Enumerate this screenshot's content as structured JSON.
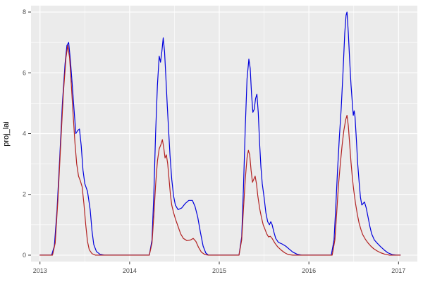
{
  "chart_data": {
    "type": "line",
    "title": "",
    "xlabel": "",
    "ylabel": "proj_lai",
    "xlim": [
      2012.9,
      2017.21
    ],
    "ylim": [
      -0.21,
      8.21
    ],
    "x_major_ticks": [
      2013,
      2014,
      2015,
      2016,
      2017
    ],
    "x_minor_ticks": [
      2013.5,
      2014.5,
      2015.5,
      2016.5
    ],
    "y_major_ticks": [
      0,
      2,
      4,
      6,
      8
    ],
    "y_minor_ticks": [
      1,
      3,
      5,
      7
    ],
    "grid": true,
    "legend": "none",
    "panel_bg": "#EBEBEB",
    "grid_color": "#FFFFFF",
    "axis_text_color": "#4D4D4D",
    "tick_mark_color": "#333333",
    "series": [
      {
        "name": "blue",
        "color": "#0000DD",
        "points": [
          [
            2013.0,
            0
          ],
          [
            2013.13,
            0
          ],
          [
            2013.16,
            0.3
          ],
          [
            2013.19,
            1.5
          ],
          [
            2013.22,
            3.2
          ],
          [
            2013.25,
            5.0
          ],
          [
            2013.28,
            6.3
          ],
          [
            2013.3,
            6.9
          ],
          [
            2013.32,
            7.0
          ],
          [
            2013.34,
            6.4
          ],
          [
            2013.36,
            5.6
          ],
          [
            2013.38,
            4.8
          ],
          [
            2013.4,
            4.0
          ],
          [
            2013.42,
            4.1
          ],
          [
            2013.44,
            4.15
          ],
          [
            2013.46,
            3.6
          ],
          [
            2013.48,
            2.8
          ],
          [
            2013.5,
            2.35
          ],
          [
            2013.53,
            2.1
          ],
          [
            2013.56,
            1.5
          ],
          [
            2013.58,
            0.8
          ],
          [
            2013.6,
            0.35
          ],
          [
            2013.63,
            0.12
          ],
          [
            2013.67,
            0.03
          ],
          [
            2013.72,
            0
          ],
          [
            2014.22,
            0
          ],
          [
            2014.25,
            0.5
          ],
          [
            2014.27,
            2.0
          ],
          [
            2014.29,
            4.0
          ],
          [
            2014.31,
            5.6
          ],
          [
            2014.33,
            6.55
          ],
          [
            2014.345,
            6.35
          ],
          [
            2014.36,
            6.7
          ],
          [
            2014.375,
            7.15
          ],
          [
            2014.39,
            6.7
          ],
          [
            2014.405,
            5.8
          ],
          [
            2014.42,
            4.9
          ],
          [
            2014.435,
            4.1
          ],
          [
            2014.45,
            3.3
          ],
          [
            2014.47,
            2.5
          ],
          [
            2014.49,
            1.95
          ],
          [
            2014.51,
            1.65
          ],
          [
            2014.54,
            1.5
          ],
          [
            2014.58,
            1.55
          ],
          [
            2014.62,
            1.7
          ],
          [
            2014.66,
            1.8
          ],
          [
            2014.7,
            1.8
          ],
          [
            2014.73,
            1.6
          ],
          [
            2014.76,
            1.25
          ],
          [
            2014.79,
            0.75
          ],
          [
            2014.82,
            0.3
          ],
          [
            2014.85,
            0.07
          ],
          [
            2014.88,
            0
          ],
          [
            2015.22,
            0
          ],
          [
            2015.25,
            0.6
          ],
          [
            2015.27,
            2.2
          ],
          [
            2015.29,
            4.2
          ],
          [
            2015.31,
            5.8
          ],
          [
            2015.33,
            6.45
          ],
          [
            2015.345,
            6.15
          ],
          [
            2015.36,
            5.3
          ],
          [
            2015.375,
            4.7
          ],
          [
            2015.39,
            4.8
          ],
          [
            2015.405,
            5.15
          ],
          [
            2015.42,
            5.3
          ],
          [
            2015.435,
            4.7
          ],
          [
            2015.45,
            3.7
          ],
          [
            2015.465,
            2.9
          ],
          [
            2015.48,
            2.35
          ],
          [
            2015.5,
            1.9
          ],
          [
            2015.52,
            1.4
          ],
          [
            2015.54,
            1.1
          ],
          [
            2015.56,
            1.0
          ],
          [
            2015.575,
            1.1
          ],
          [
            2015.59,
            1.0
          ],
          [
            2015.61,
            0.75
          ],
          [
            2015.63,
            0.55
          ],
          [
            2015.66,
            0.42
          ],
          [
            2015.7,
            0.37
          ],
          [
            2015.74,
            0.3
          ],
          [
            2015.78,
            0.2
          ],
          [
            2015.82,
            0.1
          ],
          [
            2015.87,
            0.03
          ],
          [
            2015.92,
            0
          ],
          [
            2016.25,
            0
          ],
          [
            2016.28,
            0.5
          ],
          [
            2016.3,
            1.6
          ],
          [
            2016.32,
            2.8
          ],
          [
            2016.34,
            3.9
          ],
          [
            2016.36,
            4.8
          ],
          [
            2016.38,
            6.0
          ],
          [
            2016.4,
            7.3
          ],
          [
            2016.415,
            7.9
          ],
          [
            2016.425,
            8.0
          ],
          [
            2016.44,
            7.3
          ],
          [
            2016.455,
            6.4
          ],
          [
            2016.47,
            5.6
          ],
          [
            2016.485,
            5.0
          ],
          [
            2016.495,
            4.6
          ],
          [
            2016.505,
            4.75
          ],
          [
            2016.515,
            4.55
          ],
          [
            2016.53,
            3.8
          ],
          [
            2016.545,
            3.0
          ],
          [
            2016.56,
            2.4
          ],
          [
            2016.575,
            1.9
          ],
          [
            2016.59,
            1.65
          ],
          [
            2016.605,
            1.7
          ],
          [
            2016.62,
            1.75
          ],
          [
            2016.64,
            1.55
          ],
          [
            2016.66,
            1.25
          ],
          [
            2016.68,
            0.95
          ],
          [
            2016.7,
            0.7
          ],
          [
            2016.73,
            0.5
          ],
          [
            2016.76,
            0.4
          ],
          [
            2016.8,
            0.28
          ],
          [
            2016.84,
            0.17
          ],
          [
            2016.88,
            0.08
          ],
          [
            2016.93,
            0.02
          ],
          [
            2016.98,
            0
          ],
          [
            2017.02,
            0
          ]
        ]
      },
      {
        "name": "red",
        "color": "#B22222",
        "points": [
          [
            2013.0,
            0
          ],
          [
            2013.14,
            0
          ],
          [
            2013.17,
            0.4
          ],
          [
            2013.2,
            1.8
          ],
          [
            2013.23,
            3.6
          ],
          [
            2013.26,
            5.3
          ],
          [
            2013.29,
            6.5
          ],
          [
            2013.31,
            6.9
          ],
          [
            2013.33,
            6.5
          ],
          [
            2013.35,
            5.6
          ],
          [
            2013.37,
            4.6
          ],
          [
            2013.39,
            3.7
          ],
          [
            2013.41,
            3.0
          ],
          [
            2013.43,
            2.6
          ],
          [
            2013.45,
            2.45
          ],
          [
            2013.47,
            2.25
          ],
          [
            2013.49,
            1.7
          ],
          [
            2013.51,
            1.0
          ],
          [
            2013.53,
            0.45
          ],
          [
            2013.55,
            0.18
          ],
          [
            2013.58,
            0.05
          ],
          [
            2013.62,
            0
          ],
          [
            2014.22,
            0
          ],
          [
            2014.25,
            0.4
          ],
          [
            2014.27,
            1.3
          ],
          [
            2014.29,
            2.3
          ],
          [
            2014.31,
            3.1
          ],
          [
            2014.33,
            3.5
          ],
          [
            2014.35,
            3.65
          ],
          [
            2014.365,
            3.8
          ],
          [
            2014.38,
            3.55
          ],
          [
            2014.395,
            3.2
          ],
          [
            2014.41,
            3.3
          ],
          [
            2014.425,
            3.0
          ],
          [
            2014.44,
            2.5
          ],
          [
            2014.455,
            2.0
          ],
          [
            2014.47,
            1.65
          ],
          [
            2014.49,
            1.4
          ],
          [
            2014.51,
            1.2
          ],
          [
            2014.54,
            0.95
          ],
          [
            2014.57,
            0.7
          ],
          [
            2014.6,
            0.55
          ],
          [
            2014.64,
            0.48
          ],
          [
            2014.68,
            0.5
          ],
          [
            2014.71,
            0.55
          ],
          [
            2014.74,
            0.45
          ],
          [
            2014.77,
            0.25
          ],
          [
            2014.8,
            0.1
          ],
          [
            2014.84,
            0.02
          ],
          [
            2014.88,
            0
          ],
          [
            2015.22,
            0
          ],
          [
            2015.25,
            0.5
          ],
          [
            2015.27,
            1.5
          ],
          [
            2015.29,
            2.5
          ],
          [
            2015.31,
            3.2
          ],
          [
            2015.325,
            3.45
          ],
          [
            2015.34,
            3.3
          ],
          [
            2015.355,
            2.8
          ],
          [
            2015.37,
            2.4
          ],
          [
            2015.385,
            2.5
          ],
          [
            2015.4,
            2.6
          ],
          [
            2015.415,
            2.35
          ],
          [
            2015.43,
            1.95
          ],
          [
            2015.45,
            1.55
          ],
          [
            2015.47,
            1.25
          ],
          [
            2015.49,
            1.0
          ],
          [
            2015.51,
            0.85
          ],
          [
            2015.53,
            0.7
          ],
          [
            2015.55,
            0.6
          ],
          [
            2015.57,
            0.62
          ],
          [
            2015.59,
            0.55
          ],
          [
            2015.62,
            0.4
          ],
          [
            2015.65,
            0.28
          ],
          [
            2015.69,
            0.17
          ],
          [
            2015.73,
            0.08
          ],
          [
            2015.77,
            0.02
          ],
          [
            2015.82,
            0
          ],
          [
            2016.26,
            0
          ],
          [
            2016.29,
            0.5
          ],
          [
            2016.31,
            1.4
          ],
          [
            2016.33,
            2.3
          ],
          [
            2016.35,
            3.0
          ],
          [
            2016.37,
            3.6
          ],
          [
            2016.39,
            4.1
          ],
          [
            2016.41,
            4.45
          ],
          [
            2016.425,
            4.6
          ],
          [
            2016.44,
            4.25
          ],
          [
            2016.455,
            3.65
          ],
          [
            2016.47,
            3.05
          ],
          [
            2016.485,
            2.55
          ],
          [
            2016.5,
            2.15
          ],
          [
            2016.52,
            1.7
          ],
          [
            2016.54,
            1.35
          ],
          [
            2016.56,
            1.05
          ],
          [
            2016.58,
            0.85
          ],
          [
            2016.6,
            0.68
          ],
          [
            2016.63,
            0.52
          ],
          [
            2016.66,
            0.4
          ],
          [
            2016.69,
            0.3
          ],
          [
            2016.72,
            0.22
          ],
          [
            2016.76,
            0.14
          ],
          [
            2016.8,
            0.08
          ],
          [
            2016.85,
            0.03
          ],
          [
            2016.9,
            0
          ],
          [
            2017.02,
            0
          ]
        ]
      }
    ]
  }
}
